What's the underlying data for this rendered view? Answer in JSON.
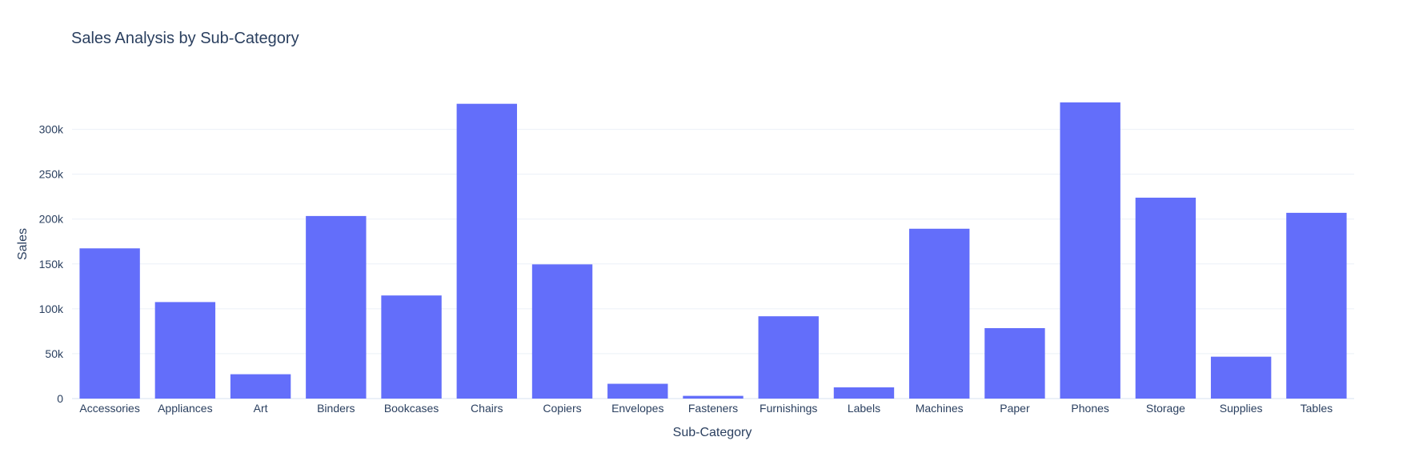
{
  "chart_data": {
    "type": "bar",
    "title": "Sales Analysis by Sub-Category",
    "xlabel": "Sub-Category",
    "ylabel": "Sales",
    "categories": [
      "Accessories",
      "Appliances",
      "Art",
      "Binders",
      "Bookcases",
      "Chairs",
      "Copiers",
      "Envelopes",
      "Fasteners",
      "Furnishings",
      "Labels",
      "Machines",
      "Paper",
      "Phones",
      "Storage",
      "Supplies",
      "Tables"
    ],
    "values": [
      167380,
      107532,
      27119,
      203413,
      114880,
      328449,
      149528,
      16476,
      3024,
      91705,
      12486,
      189239,
      78479,
      330007,
      223844,
      46674,
      206966
    ],
    "ylim": [
      0,
      346000
    ],
    "yticks": [
      0,
      50000,
      100000,
      150000,
      200000,
      250000,
      300000
    ],
    "ytick_labels": [
      "0",
      "50k",
      "100k",
      "150k",
      "200k",
      "250k",
      "300k"
    ],
    "grid": true,
    "bar_color": "#636efa"
  }
}
